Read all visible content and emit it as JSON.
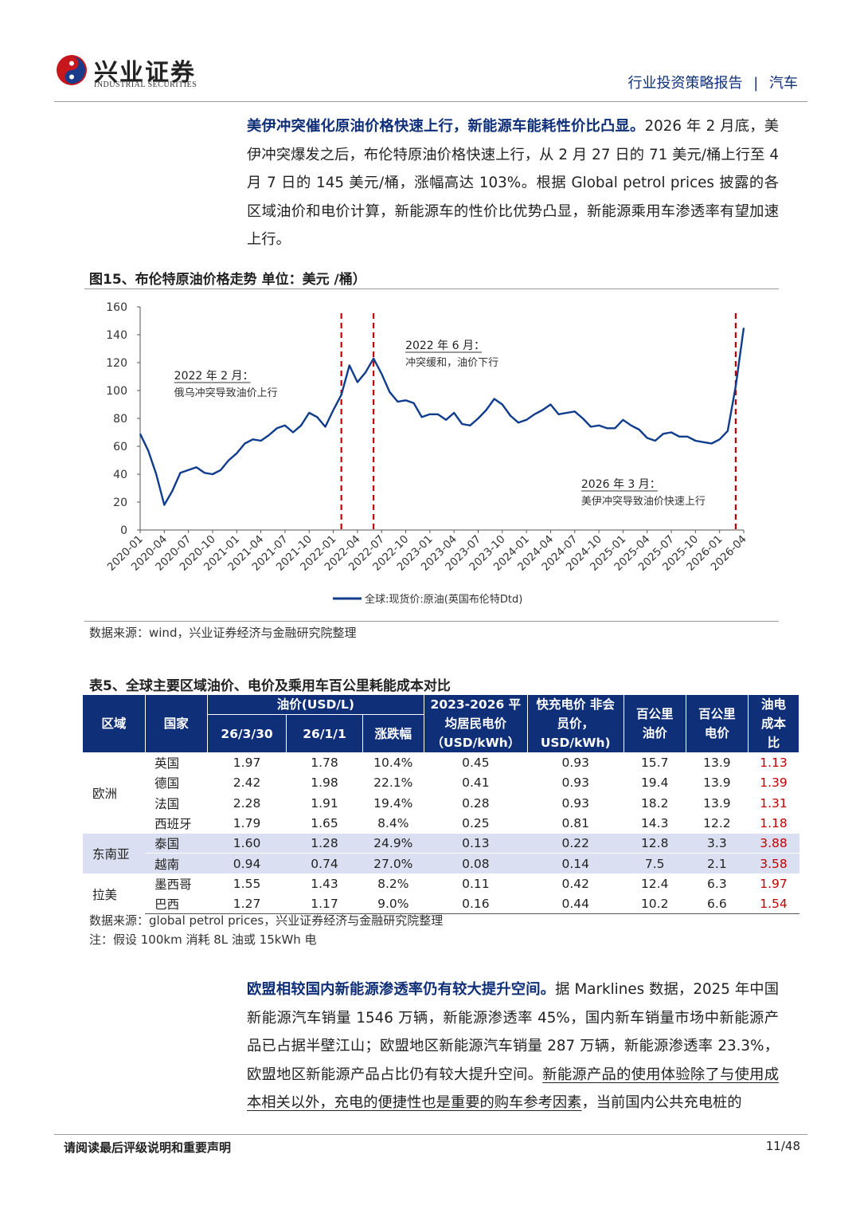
{
  "header": {
    "logo_cn": "兴业证券",
    "logo_en": "INDUSTRIAL SECURITIES",
    "report_type": "行业投资策略报告",
    "separator": "|",
    "sector": "汽车"
  },
  "para1": {
    "headline": "美伊冲突催化原油价格快速上行，新能源车能耗性价比凸显。",
    "body": "2026 年 2 月底，美伊冲突爆发之后，布伦特原油价格快速上行，从 2 月 27 日的 71 美元/桶上行至 4 月 7 日的 145 美元/桶，涨幅高达 103%。根据 Global petrol prices 披露的各区域油价和电价计算，新能源车的性价比优势凸显，新能源乘用车渗透率有望加速上行。"
  },
  "figure": {
    "title": "图15、布伦特原油价格走势 单位：美元  /桶）",
    "source": "数据来源：wind，兴业证券经济与金融研究院整理"
  },
  "chart_data": {
    "type": "line",
    "title": "图15、布伦特原油价格走势 单位：美元  /桶）",
    "xlabel": "",
    "ylabel": "",
    "ylim": [
      0,
      160
    ],
    "yticks": [
      "0",
      "20",
      "40",
      "60",
      "80",
      "100",
      "120",
      "140",
      "160"
    ],
    "x_tick_labels": [
      "2020-01",
      "2020-04",
      "2020-07",
      "2020-10",
      "2021-01",
      "2021-04",
      "2021-07",
      "2021-10",
      "2022-01",
      "2022-04",
      "2022-07",
      "2022-10",
      "2023-01",
      "2023-04",
      "2023-07",
      "2023-10",
      "2024-01",
      "2024-04",
      "2024-07",
      "2024-10",
      "2025-01",
      "2025-04",
      "2025-07",
      "2025-10",
      "2026-01",
      "2026-04"
    ],
    "legend_position": "bottom",
    "color": "#0f3c8c",
    "series": [
      {
        "name": "全球:现货价:原油(英国布伦特Dtd)",
        "x": [
          "2020-01",
          "2020-02",
          "2020-03",
          "2020-04",
          "2020-05",
          "2020-06",
          "2020-07",
          "2020-08",
          "2020-09",
          "2020-10",
          "2020-11",
          "2020-12",
          "2021-01",
          "2021-02",
          "2021-03",
          "2021-04",
          "2021-05",
          "2021-06",
          "2021-07",
          "2021-08",
          "2021-09",
          "2021-10",
          "2021-11",
          "2021-12",
          "2022-01",
          "2022-02",
          "2022-03",
          "2022-04",
          "2022-05",
          "2022-06",
          "2022-07",
          "2022-08",
          "2022-09",
          "2022-10",
          "2022-11",
          "2022-12",
          "2023-01",
          "2023-02",
          "2023-03",
          "2023-04",
          "2023-05",
          "2023-06",
          "2023-07",
          "2023-08",
          "2023-09",
          "2023-10",
          "2023-11",
          "2023-12",
          "2024-01",
          "2024-02",
          "2024-03",
          "2024-04",
          "2024-05",
          "2024-06",
          "2024-07",
          "2024-08",
          "2024-09",
          "2024-10",
          "2024-11",
          "2024-12",
          "2025-01",
          "2025-02",
          "2025-03",
          "2025-04",
          "2025-05",
          "2025-06",
          "2025-07",
          "2025-08",
          "2025-09",
          "2025-10",
          "2025-11",
          "2025-12",
          "2026-01",
          "2026-02",
          "2026-03",
          "2026-04"
        ],
        "values": [
          69,
          57,
          40,
          18,
          28,
          41,
          43,
          45,
          41,
          40,
          43,
          50,
          55,
          62,
          65,
          64,
          68,
          73,
          75,
          70,
          75,
          84,
          81,
          74,
          86,
          97,
          118,
          106,
          113,
          123,
          112,
          99,
          92,
          93,
          91,
          81,
          83,
          83,
          79,
          84,
          76,
          75,
          80,
          86,
          94,
          90,
          82,
          77,
          79,
          83,
          86,
          90,
          83,
          84,
          85,
          80,
          74,
          75,
          73,
          73,
          79,
          75,
          72,
          66,
          64,
          69,
          70,
          67,
          67,
          64,
          63,
          62,
          65,
          71,
          103,
          145
        ]
      }
    ],
    "annotations": [
      {
        "date": "2022-02",
        "title": "2022 年 2 月：",
        "text": "俄乌冲突导致油价上行"
      },
      {
        "date": "2022-06",
        "title": "2022 年 6 月：",
        "text": "冲突缓和，油价下行"
      },
      {
        "date": "2026-03",
        "title": "2026 年 3 月：",
        "text": "美伊冲突导致油价快速上行"
      }
    ]
  },
  "table": {
    "title": "表5、全球主要区域油价、电价及乘用车百公里耗能成本对比",
    "headers": {
      "region": "区域",
      "country": "国家",
      "oil_price_group": "油价(USD/L)",
      "d1": "26/3/30",
      "d2": "26/1/1",
      "change": "涨跌幅",
      "household_elec": "2023-2026 平均居民电价（USD/kWh）",
      "fast_charge": "快充电价 非会员价，USD/kWh)",
      "oil_100km": "百公里油价",
      "elec_100km": "百公里电价",
      "ratio": "油电成本比"
    },
    "groups": [
      {
        "region": "欧洲",
        "rows": [
          {
            "country": "英国",
            "d1": "1.97",
            "d2": "1.78",
            "chg": "10.4%",
            "he": "0.45",
            "fc": "0.93",
            "oil": "15.7",
            "elec": "13.9",
            "ratio": "1.13"
          },
          {
            "country": "德国",
            "d1": "2.42",
            "d2": "1.98",
            "chg": "22.1%",
            "he": "0.41",
            "fc": "0.93",
            "oil": "19.4",
            "elec": "13.9",
            "ratio": "1.39"
          },
          {
            "country": "法国",
            "d1": "2.28",
            "d2": "1.91",
            "chg": "19.4%",
            "he": "0.28",
            "fc": "0.93",
            "oil": "18.2",
            "elec": "13.9",
            "ratio": "1.31"
          },
          {
            "country": "西班牙",
            "d1": "1.79",
            "d2": "1.65",
            "chg": "8.4%",
            "he": "0.25",
            "fc": "0.81",
            "oil": "14.3",
            "elec": "12.2",
            "ratio": "1.18"
          }
        ]
      },
      {
        "region": "东南亚",
        "rows": [
          {
            "country": "泰国",
            "d1": "1.60",
            "d2": "1.28",
            "chg": "24.9%",
            "he": "0.13",
            "fc": "0.22",
            "oil": "12.8",
            "elec": "3.3",
            "ratio": "3.88"
          },
          {
            "country": "越南",
            "d1": "0.94",
            "d2": "0.74",
            "chg": "27.0%",
            "he": "0.08",
            "fc": "0.14",
            "oil": "7.5",
            "elec": "2.1",
            "ratio": "3.58"
          }
        ]
      },
      {
        "region": "拉美",
        "rows": [
          {
            "country": "墨西哥",
            "d1": "1.55",
            "d2": "1.43",
            "chg": "8.2%",
            "he": "0.11",
            "fc": "0.42",
            "oil": "12.4",
            "elec": "6.3",
            "ratio": "1.97"
          },
          {
            "country": "巴西",
            "d1": "1.27",
            "d2": "1.17",
            "chg": "9.0%",
            "he": "0.16",
            "fc": "0.44",
            "oil": "10.2",
            "elec": "6.6",
            "ratio": "1.54"
          }
        ]
      }
    ],
    "source": "数据来源：global petrol prices，兴业证券经济与金融研究院整理",
    "note": "注：假设 100km 消耗 8L 油或 15kWh 电"
  },
  "para2": {
    "headline": "欧盟相较国内新能源渗透率仍有较大提升空间。",
    "body": "据 Marklines 数据，2025 年中国新能源汽车销量 1546 万辆，新能源渗透率 45%，国内新车销量市场中新能源产品已占据半壁江山；欧盟地区新能源汽车销量 287 万辆，新能源渗透率 23.3%，欧盟地区新能源产品占比仍有较大提升空间。",
    "underlined": "新能源产品的使用体验除了与使用成本相关以外，充电的便捷性也是重要的购车参考因素",
    "tail": "，当前国内公共充电桩的"
  },
  "footer": {
    "disclaimer": "请阅读最后评级说明和重要声明",
    "page": "11/48"
  }
}
